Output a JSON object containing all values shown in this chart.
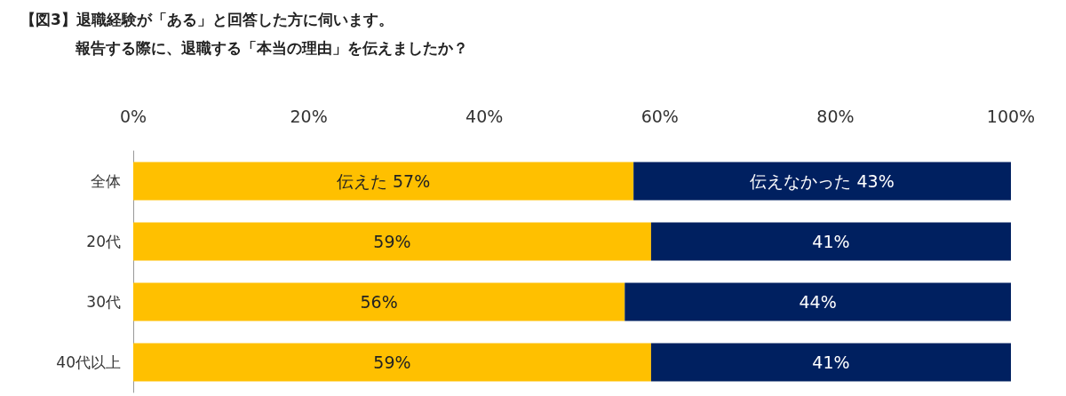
{
  "chart_data": {
    "type": "bar",
    "orientation": "horizontal",
    "stacked": true,
    "title": "【図3】退職経験が「ある」と回答した方に伺います。",
    "subtitle": "報告する際に、退職する「本当の理由」を伝えましたか？",
    "categories": [
      "全体",
      "20代",
      "30代",
      "40代以上"
    ],
    "series": [
      {
        "color": "#ffc000",
        "values": [
          57,
          59,
          56,
          59
        ],
        "value_labels": [
          "伝えた 57%",
          "59%",
          "56%",
          "59%"
        ]
      },
      {
        "color": "#002060",
        "values": [
          43,
          41,
          44,
          41
        ],
        "value_labels": [
          "伝えなかった 43%",
          "41%",
          "44%",
          "41%"
        ]
      }
    ],
    "xlim": [
      0,
      100
    ],
    "xticks": [
      {
        "value": 0,
        "label": "0%"
      },
      {
        "value": 20,
        "label": "20%"
      },
      {
        "value": 40,
        "label": "40%"
      },
      {
        "value": 60,
        "label": "60%"
      },
      {
        "value": 80,
        "label": "80%"
      },
      {
        "value": 100,
        "label": "100%"
      }
    ],
    "grid": false
  }
}
